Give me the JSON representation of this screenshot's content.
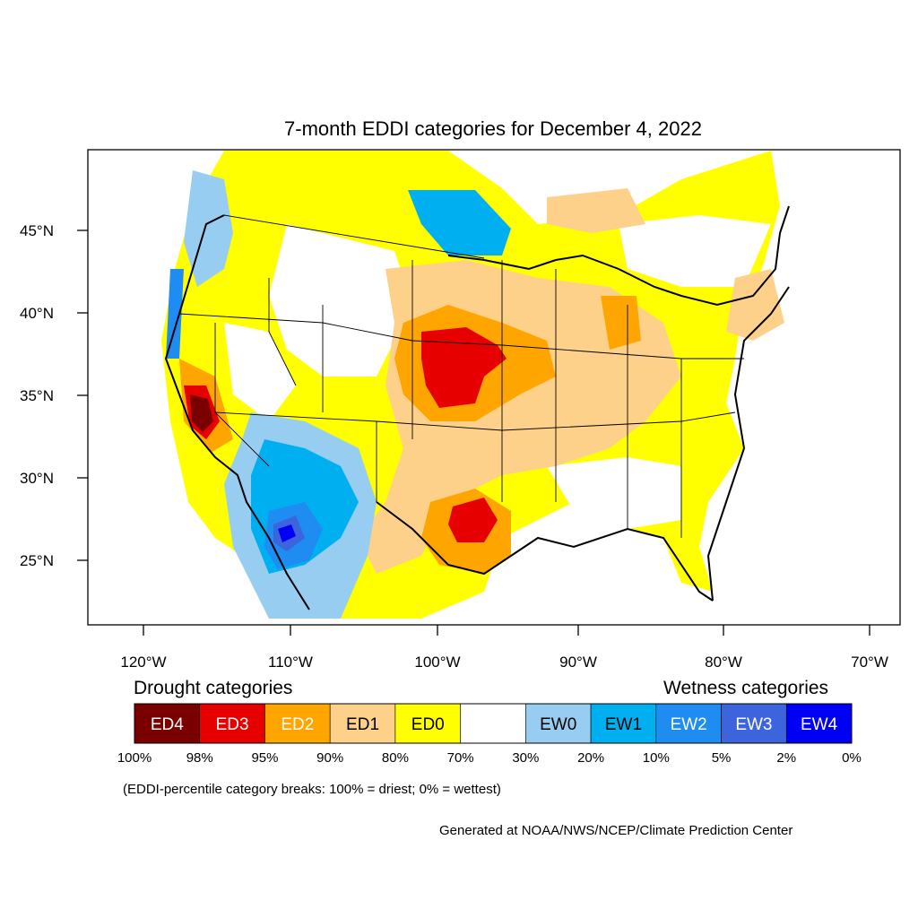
{
  "title": "7-month EDDI categories for December 4, 2022",
  "axes": {
    "lat_labels": [
      "45°N",
      "40°N",
      "35°N",
      "30°N",
      "25°N"
    ],
    "lon_labels": [
      "120°W",
      "110°W",
      "100°W",
      "90°W",
      "80°W",
      "70°W"
    ]
  },
  "legend": {
    "drought_heading": "Drought categories",
    "wetness_heading": "Wetness categories",
    "categories": [
      {
        "label": "ED4",
        "color": "#7a0000",
        "text_color": "#ffffff"
      },
      {
        "label": "ED3",
        "color": "#e60000",
        "text_color": "#ffffff"
      },
      {
        "label": "ED2",
        "color": "#ffa500",
        "text_color": "#ffffff"
      },
      {
        "label": "ED1",
        "color": "#fdd18a",
        "text_color": "#000000"
      },
      {
        "label": "ED0",
        "color": "#ffff00",
        "text_color": "#000000"
      },
      {
        "label": "",
        "color": "#ffffff",
        "text_color": "#000000"
      },
      {
        "label": "EW0",
        "color": "#96cdf0",
        "text_color": "#000000"
      },
      {
        "label": "EW1",
        "color": "#00aff0",
        "text_color": "#000000"
      },
      {
        "label": "EW2",
        "color": "#1e8cf0",
        "text_color": "#ffffff"
      },
      {
        "label": "EW3",
        "color": "#3c64dc",
        "text_color": "#ffffff"
      },
      {
        "label": "EW4",
        "color": "#0000f5",
        "text_color": "#ffffff"
      }
    ],
    "breaks": [
      "100%",
      "98%",
      "95%",
      "90%",
      "80%",
      "70%",
      "30%",
      "20%",
      "10%",
      "5%",
      "2%",
      "0%"
    ]
  },
  "note": "(EDDI-percentile category breaks: 100% = driest; 0% = wettest)",
  "credit": "Generated at NOAA/NWS/NCEP/Climate Prediction Center"
}
